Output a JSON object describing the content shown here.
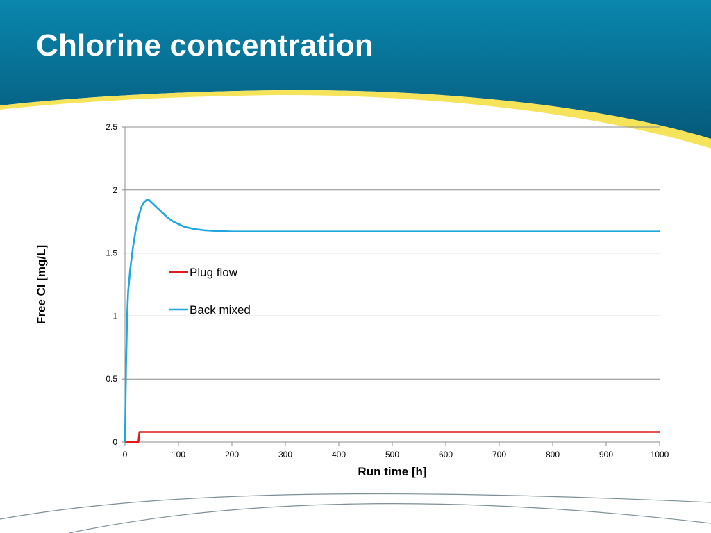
{
  "slide": {
    "title": "Chlorine concentration",
    "colors": {
      "header": "#0a7fa7",
      "header_dark": "#055d7e",
      "swoosh": "#f5e35a"
    }
  },
  "chart_data": {
    "type": "line",
    "xlabel": "Run time [h]",
    "ylabel": "Free Cl [mg/L]",
    "xlim": [
      0,
      1000
    ],
    "ylim": [
      0,
      2.5
    ],
    "x_ticks": [
      0,
      100,
      200,
      300,
      400,
      500,
      600,
      700,
      800,
      900,
      1000
    ],
    "y_ticks": [
      0,
      0.5,
      1,
      1.5,
      2,
      2.5
    ],
    "y_tick_labels": [
      "0",
      "0.5",
      "1",
      "1.5",
      "2",
      "2.5"
    ],
    "grid": "horizontal",
    "legend_position": "left-center",
    "series": [
      {
        "name": "Plug flow",
        "color": "#e31a1c",
        "points": [
          [
            0,
            0
          ],
          [
            25,
            0
          ],
          [
            27,
            0.08
          ],
          [
            1000,
            0.08
          ]
        ]
      },
      {
        "name": "Back mixed",
        "color": "#1fa8e0",
        "points": [
          [
            0,
            0
          ],
          [
            2,
            0.6
          ],
          [
            4,
            1.0
          ],
          [
            6,
            1.2
          ],
          [
            10,
            1.38
          ],
          [
            15,
            1.55
          ],
          [
            20,
            1.68
          ],
          [
            25,
            1.78
          ],
          [
            30,
            1.86
          ],
          [
            35,
            1.9
          ],
          [
            40,
            1.92
          ],
          [
            45,
            1.92
          ],
          [
            50,
            1.9
          ],
          [
            60,
            1.86
          ],
          [
            70,
            1.82
          ],
          [
            80,
            1.78
          ],
          [
            90,
            1.75
          ],
          [
            100,
            1.73
          ],
          [
            110,
            1.71
          ],
          [
            120,
            1.7
          ],
          [
            130,
            1.69
          ],
          [
            140,
            1.685
          ],
          [
            150,
            1.68
          ],
          [
            170,
            1.675
          ],
          [
            200,
            1.67
          ],
          [
            1000,
            1.67
          ]
        ]
      }
    ]
  }
}
